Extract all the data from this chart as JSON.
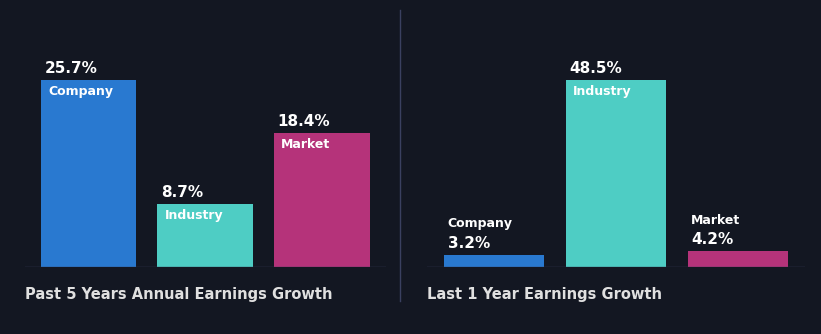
{
  "background_color": "#131722",
  "chart1": {
    "title": "Past 5 Years Annual Earnings Growth",
    "bars": [
      {
        "label": "Company",
        "value": 25.7,
        "color": "#2979d0"
      },
      {
        "label": "Industry",
        "value": 8.7,
        "color": "#4ecdc4"
      },
      {
        "label": "Market",
        "value": 18.4,
        "color": "#b5337a"
      }
    ]
  },
  "chart2": {
    "title": "Last 1 Year Earnings Growth",
    "bars": [
      {
        "label": "Company",
        "value": 3.2,
        "color": "#2979d0"
      },
      {
        "label": "Industry",
        "value": 48.5,
        "color": "#4ecdc4"
      },
      {
        "label": "Market",
        "value": 4.2,
        "color": "#b5337a"
      }
    ]
  },
  "text_color": "#ffffff",
  "label_fontsize": 9,
  "value_fontsize": 11,
  "title_fontsize": 10.5,
  "baseline_color": "#3a3f5c",
  "title_color": "#e0e0e0"
}
